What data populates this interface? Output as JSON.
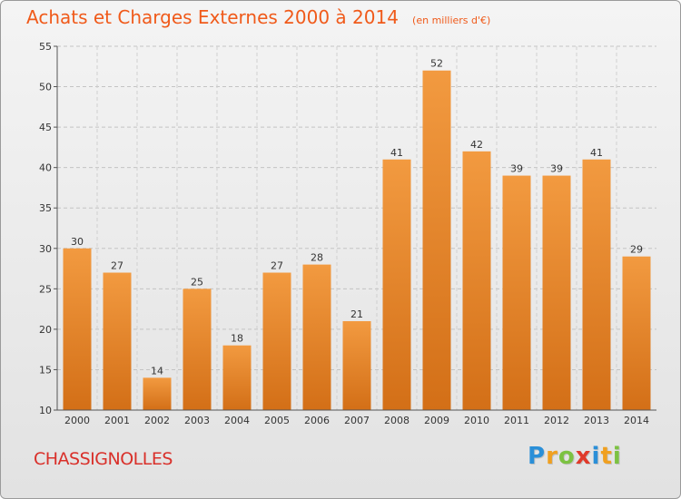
{
  "chart_data": {
    "type": "bar",
    "title": "Achats et Charges Externes 2000 à 2014",
    "unit_note": "(en milliers d'€)",
    "categories": [
      "2000",
      "2001",
      "2002",
      "2003",
      "2004",
      "2005",
      "2006",
      "2007",
      "2008",
      "2009",
      "2010",
      "2011",
      "2012",
      "2013",
      "2014"
    ],
    "values": [
      30,
      27,
      14,
      25,
      18,
      27,
      28,
      21,
      41,
      52,
      42,
      39,
      39,
      41,
      29
    ],
    "ylim": [
      10,
      55
    ],
    "yticks": [
      10,
      15,
      20,
      25,
      30,
      35,
      40,
      45,
      50,
      55
    ],
    "grid": "horizontal-dashed",
    "bar_color": "#f29a40",
    "bar_color_dark": "#d36f17"
  },
  "commune": "CHASSIGNOLLES",
  "brand": {
    "letters": [
      "P",
      "r",
      "o",
      "x",
      "i",
      "t",
      "i"
    ],
    "colors": [
      "#2a8fd8",
      "#f0a020",
      "#7cc242",
      "#e03a2a",
      "#2a8fd8",
      "#f0a020",
      "#7cc242"
    ]
  }
}
